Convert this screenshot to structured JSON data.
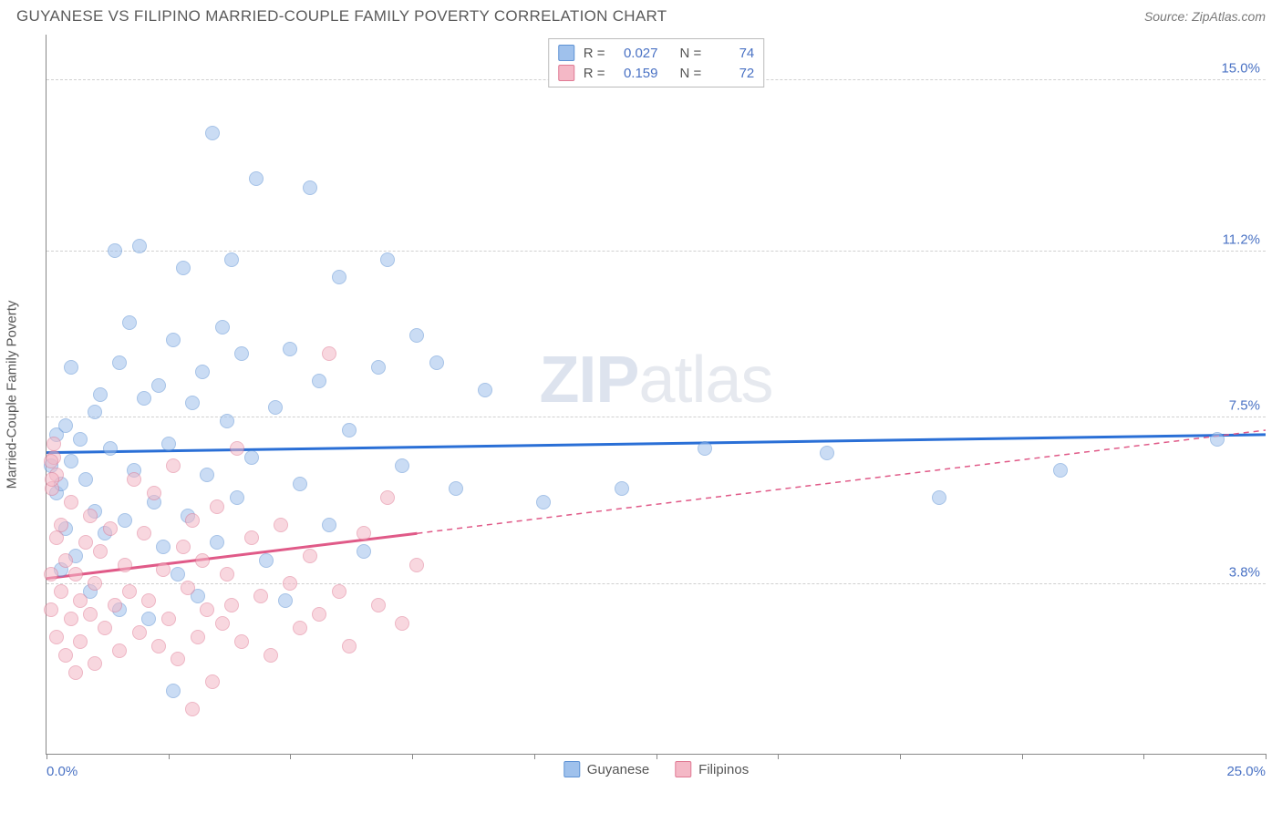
{
  "header": {
    "title": "GUYANESE VS FILIPINO MARRIED-COUPLE FAMILY POVERTY CORRELATION CHART",
    "source": "Source: ZipAtlas.com"
  },
  "watermark": {
    "bold": "ZIP",
    "rest": "atlas"
  },
  "chart": {
    "type": "scatter",
    "ylabel": "Married-Couple Family Poverty",
    "xlim": [
      0,
      25
    ],
    "ylim": [
      0,
      16
    ],
    "x_axis_labels": {
      "min": "0.0%",
      "max": "25.0%"
    },
    "y_gridlines": [
      {
        "value": 3.8,
        "label": "3.8%"
      },
      {
        "value": 7.5,
        "label": "7.5%"
      },
      {
        "value": 11.2,
        "label": "11.2%"
      },
      {
        "value": 15.0,
        "label": "15.0%"
      }
    ],
    "x_ticks": [
      0,
      2.5,
      5,
      7.5,
      10,
      12.5,
      15,
      17.5,
      20,
      22.5,
      25
    ],
    "background_color": "#ffffff",
    "grid_color": "#d0d0d0",
    "axis_color": "#888888",
    "point_radius": 8,
    "point_opacity": 0.55,
    "series": [
      {
        "name": "Guyanese",
        "fill": "#9fc1ec",
        "stroke": "#5e92d4",
        "trend": {
          "color": "#2a6fd6",
          "width": 3,
          "dash": "none",
          "y_at_xmin": 6.7,
          "y_at_xmax": 7.1,
          "solid_until_x": 25
        },
        "legend": {
          "R": "0.027",
          "N": "74"
        },
        "points": [
          [
            0.1,
            6.4
          ],
          [
            0.2,
            5.8
          ],
          [
            0.2,
            7.1
          ],
          [
            0.3,
            4.1
          ],
          [
            0.3,
            6.0
          ],
          [
            0.4,
            7.3
          ],
          [
            0.4,
            5.0
          ],
          [
            0.5,
            8.6
          ],
          [
            0.5,
            6.5
          ],
          [
            0.6,
            4.4
          ],
          [
            0.7,
            7.0
          ],
          [
            0.8,
            6.1
          ],
          [
            0.9,
            3.6
          ],
          [
            1.0,
            5.4
          ],
          [
            1.0,
            7.6
          ],
          [
            1.1,
            8.0
          ],
          [
            1.2,
            4.9
          ],
          [
            1.3,
            6.8
          ],
          [
            1.4,
            11.2
          ],
          [
            1.5,
            3.2
          ],
          [
            1.5,
            8.7
          ],
          [
            1.6,
            5.2
          ],
          [
            1.7,
            9.6
          ],
          [
            1.8,
            6.3
          ],
          [
            1.9,
            11.3
          ],
          [
            2.0,
            7.9
          ],
          [
            2.1,
            3.0
          ],
          [
            2.2,
            5.6
          ],
          [
            2.3,
            8.2
          ],
          [
            2.4,
            4.6
          ],
          [
            2.5,
            6.9
          ],
          [
            2.6,
            9.2
          ],
          [
            2.7,
            4.0
          ],
          [
            2.8,
            10.8
          ],
          [
            2.9,
            5.3
          ],
          [
            3.0,
            7.8
          ],
          [
            3.1,
            3.5
          ],
          [
            3.2,
            8.5
          ],
          [
            3.3,
            6.2
          ],
          [
            3.4,
            13.8
          ],
          [
            3.5,
            4.7
          ],
          [
            3.6,
            9.5
          ],
          [
            3.7,
            7.4
          ],
          [
            3.8,
            11.0
          ],
          [
            3.9,
            5.7
          ],
          [
            4.0,
            8.9
          ],
          [
            4.2,
            6.6
          ],
          [
            4.3,
            12.8
          ],
          [
            4.5,
            4.3
          ],
          [
            4.7,
            7.7
          ],
          [
            4.9,
            3.4
          ],
          [
            5.0,
            9.0
          ],
          [
            5.2,
            6.0
          ],
          [
            5.4,
            12.6
          ],
          [
            5.6,
            8.3
          ],
          [
            5.8,
            5.1
          ],
          [
            6.0,
            10.6
          ],
          [
            6.2,
            7.2
          ],
          [
            6.5,
            4.5
          ],
          [
            6.8,
            8.6
          ],
          [
            7.0,
            11.0
          ],
          [
            7.3,
            6.4
          ],
          [
            7.6,
            9.3
          ],
          [
            8.0,
            8.7
          ],
          [
            8.4,
            5.9
          ],
          [
            9.0,
            8.1
          ],
          [
            10.2,
            5.6
          ],
          [
            11.8,
            5.9
          ],
          [
            13.5,
            6.8
          ],
          [
            16.0,
            6.7
          ],
          [
            18.3,
            5.7
          ],
          [
            20.8,
            6.3
          ],
          [
            24.0,
            7.0
          ],
          [
            2.6,
            1.4
          ]
        ]
      },
      {
        "name": "Filipinos",
        "fill": "#f4b8c6",
        "stroke": "#e07a94",
        "trend": {
          "color": "#e05a88",
          "width": 3,
          "dash": "6 5",
          "y_at_xmin": 3.9,
          "y_at_xmax": 7.2,
          "solid_until_x": 7.6
        },
        "legend": {
          "R": "0.159",
          "N": "72"
        },
        "points": [
          [
            0.1,
            4.0
          ],
          [
            0.1,
            3.2
          ],
          [
            0.2,
            4.8
          ],
          [
            0.2,
            2.6
          ],
          [
            0.3,
            3.6
          ],
          [
            0.3,
            5.1
          ],
          [
            0.4,
            2.2
          ],
          [
            0.4,
            4.3
          ],
          [
            0.5,
            3.0
          ],
          [
            0.5,
            5.6
          ],
          [
            0.6,
            1.8
          ],
          [
            0.6,
            4.0
          ],
          [
            0.7,
            3.4
          ],
          [
            0.7,
            2.5
          ],
          [
            0.8,
            4.7
          ],
          [
            0.9,
            3.1
          ],
          [
            0.9,
            5.3
          ],
          [
            1.0,
            2.0
          ],
          [
            1.0,
            3.8
          ],
          [
            1.1,
            4.5
          ],
          [
            1.2,
            2.8
          ],
          [
            1.3,
            5.0
          ],
          [
            1.4,
            3.3
          ],
          [
            1.5,
            2.3
          ],
          [
            1.6,
            4.2
          ],
          [
            1.7,
            3.6
          ],
          [
            1.8,
            6.1
          ],
          [
            1.9,
            2.7
          ],
          [
            2.0,
            4.9
          ],
          [
            2.1,
            3.4
          ],
          [
            2.2,
            5.8
          ],
          [
            2.3,
            2.4
          ],
          [
            2.4,
            4.1
          ],
          [
            2.5,
            3.0
          ],
          [
            2.6,
            6.4
          ],
          [
            2.7,
            2.1
          ],
          [
            2.8,
            4.6
          ],
          [
            2.9,
            3.7
          ],
          [
            3.0,
            5.2
          ],
          [
            3.1,
            2.6
          ],
          [
            3.2,
            4.3
          ],
          [
            3.3,
            3.2
          ],
          [
            3.4,
            1.6
          ],
          [
            3.5,
            5.5
          ],
          [
            3.6,
            2.9
          ],
          [
            3.7,
            4.0
          ],
          [
            3.8,
            3.3
          ],
          [
            3.9,
            6.8
          ],
          [
            4.0,
            2.5
          ],
          [
            4.2,
            4.8
          ],
          [
            4.4,
            3.5
          ],
          [
            4.6,
            2.2
          ],
          [
            4.8,
            5.1
          ],
          [
            5.0,
            3.8
          ],
          [
            5.2,
            2.8
          ],
          [
            5.4,
            4.4
          ],
          [
            5.6,
            3.1
          ],
          [
            5.8,
            8.9
          ],
          [
            6.0,
            3.6
          ],
          [
            6.2,
            2.4
          ],
          [
            6.5,
            4.9
          ],
          [
            6.8,
            3.3
          ],
          [
            7.0,
            5.7
          ],
          [
            7.3,
            2.9
          ],
          [
            7.6,
            4.2
          ],
          [
            3.0,
            1.0
          ],
          [
            0.15,
            6.6
          ],
          [
            0.15,
            6.9
          ],
          [
            0.2,
            6.2
          ],
          [
            0.12,
            5.9
          ],
          [
            0.12,
            6.1
          ],
          [
            0.1,
            6.5
          ]
        ]
      }
    ],
    "bottom_legend": [
      {
        "label": "Guyanese",
        "fill": "#9fc1ec",
        "stroke": "#5e92d4"
      },
      {
        "label": "Filipinos",
        "fill": "#f4b8c6",
        "stroke": "#e07a94"
      }
    ]
  }
}
